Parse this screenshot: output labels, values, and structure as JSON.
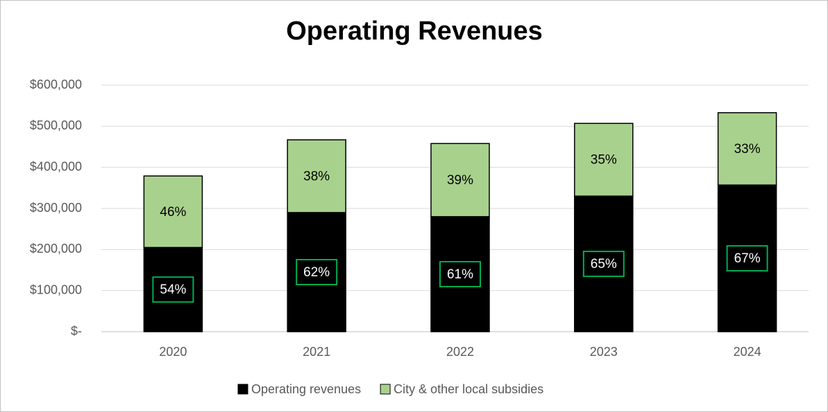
{
  "chart_data": {
    "type": "stacked_bar",
    "title": "Operating Revenues",
    "categories": [
      "2020",
      "2021",
      "2022",
      "2023",
      "2024"
    ],
    "series": [
      {
        "name": "Operating revenues",
        "color": "#000000",
        "values": [
          205000,
          290000,
          280000,
          330000,
          357000
        ],
        "share_labels": [
          "54%",
          "62%",
          "61%",
          "65%",
          "67%"
        ]
      },
      {
        "name": "City & other local subsidies",
        "color": "#a9d18e",
        "values": [
          174000,
          177000,
          178000,
          177000,
          176000
        ],
        "share_labels": [
          "46%",
          "38%",
          "39%",
          "35%",
          "33%"
        ]
      }
    ],
    "ylim": [
      0,
      600000
    ],
    "yticks": [
      {
        "value": 0,
        "label": "$-"
      },
      {
        "value": 100000,
        "label": "$100,000"
      },
      {
        "value": 200000,
        "label": "$200,000"
      },
      {
        "value": 300000,
        "label": "$300,000"
      },
      {
        "value": 400000,
        "label": "$400,000"
      },
      {
        "value": 500000,
        "label": "$500,000"
      },
      {
        "value": 600000,
        "label": "$600,000"
      }
    ],
    "grid": true,
    "legend": "bottom"
  }
}
